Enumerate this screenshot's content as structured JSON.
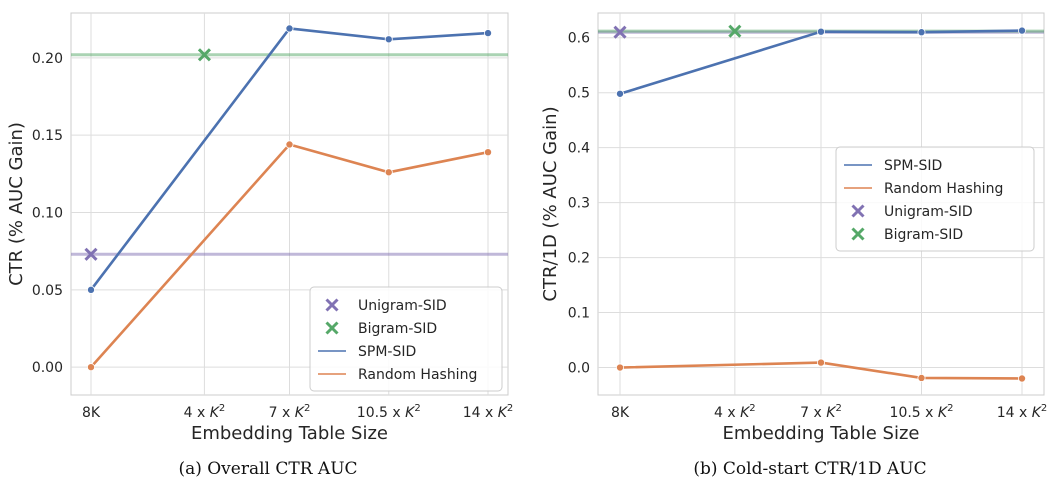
{
  "palette": {
    "spm": "#4c72b0",
    "random": "#dd8452",
    "unigram": "#8172b3",
    "bigram": "#55a868",
    "grid": "#dddddd",
    "axis": "#cccccc"
  },
  "chart_data": [
    {
      "type": "line",
      "caption": "(a) Overall CTR AUC",
      "xlabel": "Embedding Table Size",
      "ylabel": "CTR (% AUC Gain)",
      "categories": [
        "8K",
        "4 x K²",
        "7 x K²",
        "10.5 x K²",
        "14 x K²"
      ],
      "x_positions": [
        0,
        1,
        1.75,
        2.625,
        3.5
      ],
      "ylim": [
        -0.018,
        0.229
      ],
      "yticks": [
        0.0,
        0.05,
        0.1,
        0.15,
        0.2
      ],
      "ytick_labels": [
        "0.00",
        "0.05",
        "0.10",
        "0.15",
        "0.20"
      ],
      "grid": true,
      "legend_position": "lower-right",
      "series": [
        {
          "name": "SPM-SID",
          "kind": "line",
          "color_key": "spm",
          "x": [
            0,
            1.75,
            2.625,
            3.5
          ],
          "values": [
            0.05,
            0.219,
            0.212,
            0.216
          ]
        },
        {
          "name": "Random Hashing",
          "kind": "line",
          "color_key": "random",
          "x": [
            0,
            1.75,
            2.625,
            3.5
          ],
          "values": [
            0.0,
            0.144,
            0.126,
            0.139
          ]
        }
      ],
      "baselines": [
        {
          "name": "Unigram-SID",
          "color_key": "unigram",
          "x": 0,
          "value": 0.073
        },
        {
          "name": "Bigram-SID",
          "color_key": "bigram",
          "x": 1,
          "value": 0.202
        }
      ],
      "legend_order": [
        "Unigram-SID",
        "Bigram-SID",
        "SPM-SID",
        "Random Hashing"
      ]
    },
    {
      "type": "line",
      "caption": "(b) Cold-start CTR/1D AUC",
      "xlabel": "Embedding Table Size",
      "ylabel": "CTR/1D (% AUC Gain)",
      "categories": [
        "8K",
        "4 x K²",
        "7 x K²",
        "10.5 x K²",
        "14 x K²"
      ],
      "x_positions": [
        0,
        1,
        1.75,
        2.625,
        3.5
      ],
      "ylim": [
        -0.05,
        0.645
      ],
      "yticks": [
        0.0,
        0.1,
        0.2,
        0.3,
        0.4,
        0.5,
        0.6
      ],
      "ytick_labels": [
        "0.0",
        "0.1",
        "0.2",
        "0.3",
        "0.4",
        "0.5",
        "0.6"
      ],
      "grid": true,
      "legend_position": "center-right",
      "series": [
        {
          "name": "SPM-SID",
          "kind": "line",
          "color_key": "spm",
          "x": [
            0,
            1.75,
            2.625,
            3.5
          ],
          "values": [
            0.498,
            0.611,
            0.61,
            0.613
          ]
        },
        {
          "name": "Random Hashing",
          "kind": "line",
          "color_key": "random",
          "x": [
            0,
            1.75,
            2.625,
            3.5
          ],
          "values": [
            0.0,
            0.009,
            -0.019,
            -0.02
          ]
        }
      ],
      "baselines": [
        {
          "name": "Unigram-SID",
          "color_key": "unigram",
          "x": 0,
          "value": 0.61
        },
        {
          "name": "Bigram-SID",
          "color_key": "bigram",
          "x": 1,
          "value": 0.612
        }
      ],
      "legend_order": [
        "SPM-SID",
        "Random Hashing",
        "Unigram-SID",
        "Bigram-SID"
      ]
    }
  ]
}
